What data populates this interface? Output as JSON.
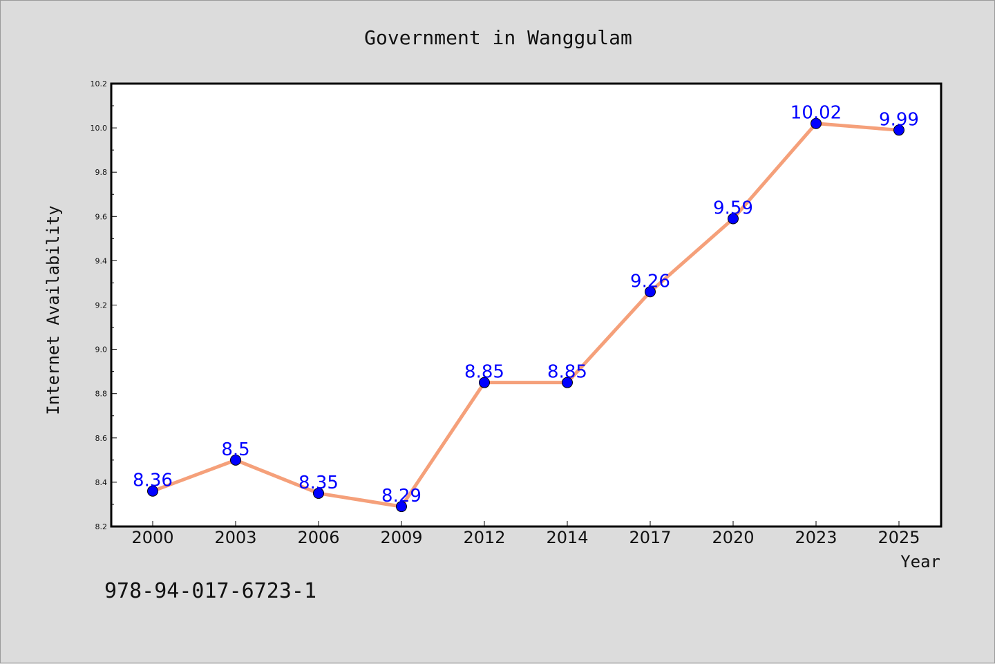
{
  "chart_data": {
    "type": "line",
    "title": "Government in Wanggulam",
    "xlabel": "Year",
    "ylabel": "Internet Availability",
    "categories": [
      "2000",
      "2003",
      "2006",
      "2009",
      "2012",
      "2014",
      "2017",
      "2020",
      "2023",
      "2025"
    ],
    "series": [
      {
        "values": [
          8.36,
          8.5,
          8.35,
          8.29,
          8.85,
          8.85,
          9.26,
          9.59,
          10.02,
          9.99
        ],
        "data_labels": [
          "8.36",
          "8.5",
          "8.35",
          "8.29",
          "8.85",
          "8.85",
          "9.26",
          "9.59",
          "10.02",
          "9.99"
        ]
      }
    ],
    "ylim": [
      8.2,
      10.2
    ],
    "yticks": [
      "8.2",
      "8.4",
      "8.6",
      "8.8",
      "9.0",
      "9.2",
      "9.4",
      "9.6",
      "9.8",
      "10.0",
      "10.2"
    ],
    "grid": false,
    "colors": {
      "line": "#f5a07a",
      "marker": "#0000ff",
      "data_label": "#0000ff"
    }
  },
  "footer": {
    "identifier": "978-94-017-6723-1"
  }
}
